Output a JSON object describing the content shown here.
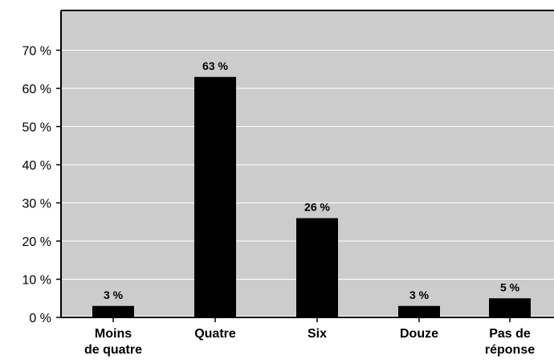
{
  "chart_data": {
    "type": "bar",
    "categories": [
      [
        "Moins",
        "de quatre"
      ],
      [
        "Quatre"
      ],
      [
        "Six"
      ],
      [
        "Douze"
      ],
      [
        "Pas de",
        "réponse"
      ]
    ],
    "values": [
      3,
      63,
      26,
      3,
      5
    ],
    "value_labels": [
      "3 %",
      "63 %",
      "26 %",
      "3 %",
      "5 %"
    ],
    "y_ticks": [
      0,
      10,
      20,
      30,
      40,
      50,
      60,
      70
    ],
    "y_tick_labels": [
      "0 %",
      "10 %",
      "20 %",
      "30 %",
      "40 %",
      "50 %",
      "60 %",
      "70 %"
    ],
    "ylim": [
      0,
      80
    ],
    "grid": true,
    "colors": {
      "plot_background": "#cccccc",
      "bar": "#000000",
      "gridline": "#ffffff",
      "axis": "#000000"
    }
  }
}
